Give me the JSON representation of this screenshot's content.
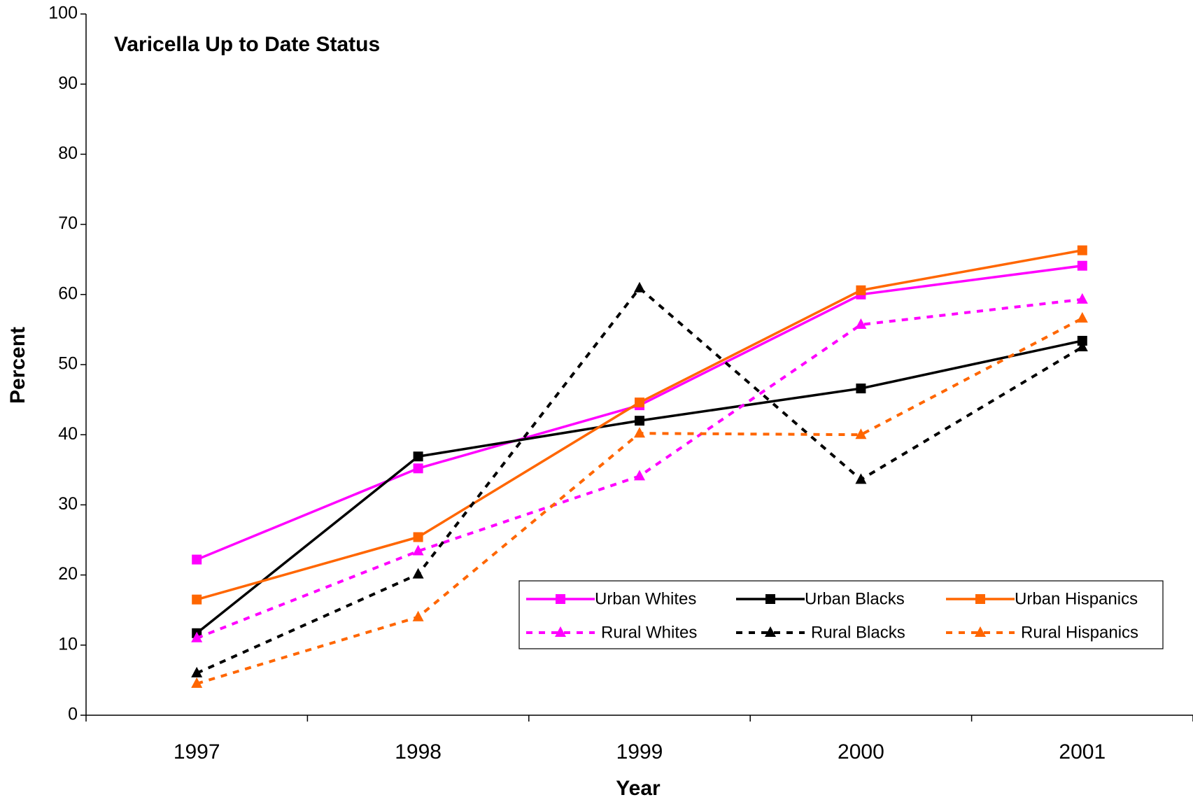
{
  "chart_data": {
    "type": "line",
    "title": "Varicella Up to Date Status",
    "x_label": "Year",
    "y_label": "Percent",
    "categories": [
      "1997",
      "1998",
      "1999",
      "2000",
      "2001"
    ],
    "ylim": [
      0,
      100
    ],
    "yticks": [
      0,
      10,
      20,
      30,
      40,
      50,
      60,
      70,
      80,
      90,
      100
    ],
    "grid": false,
    "series": [
      {
        "name": "Urban Whites",
        "color": "#ff00ff",
        "marker": "square",
        "dashed": false,
        "values": [
          22.2,
          35.2,
          44.2,
          60,
          64.1
        ]
      },
      {
        "name": "Urban Blacks",
        "color": "#000000",
        "marker": "square",
        "dashed": false,
        "values": [
          11.7,
          36.9,
          42,
          46.6,
          53.4
        ]
      },
      {
        "name": "Urban Hispanics",
        "color": "#ff6600",
        "marker": "square",
        "dashed": false,
        "values": [
          16.5,
          25.4,
          44.6,
          60.6,
          66.3
        ]
      },
      {
        "name": "Rural Whites",
        "color": "#ff00ff",
        "marker": "triangle",
        "dashed": true,
        "values": [
          11,
          23.4,
          34.1,
          55.7,
          59.3
        ]
      },
      {
        "name": "Rural Blacks",
        "color": "#000000",
        "marker": "triangle",
        "dashed": true,
        "values": [
          6,
          20.1,
          60.9,
          33.6,
          52.5
        ]
      },
      {
        "name": "Rural Hispanics",
        "color": "#ff6600",
        "marker": "triangle",
        "dashed": true,
        "values": [
          4.5,
          14,
          40.2,
          40,
          56.6
        ]
      }
    ]
  }
}
